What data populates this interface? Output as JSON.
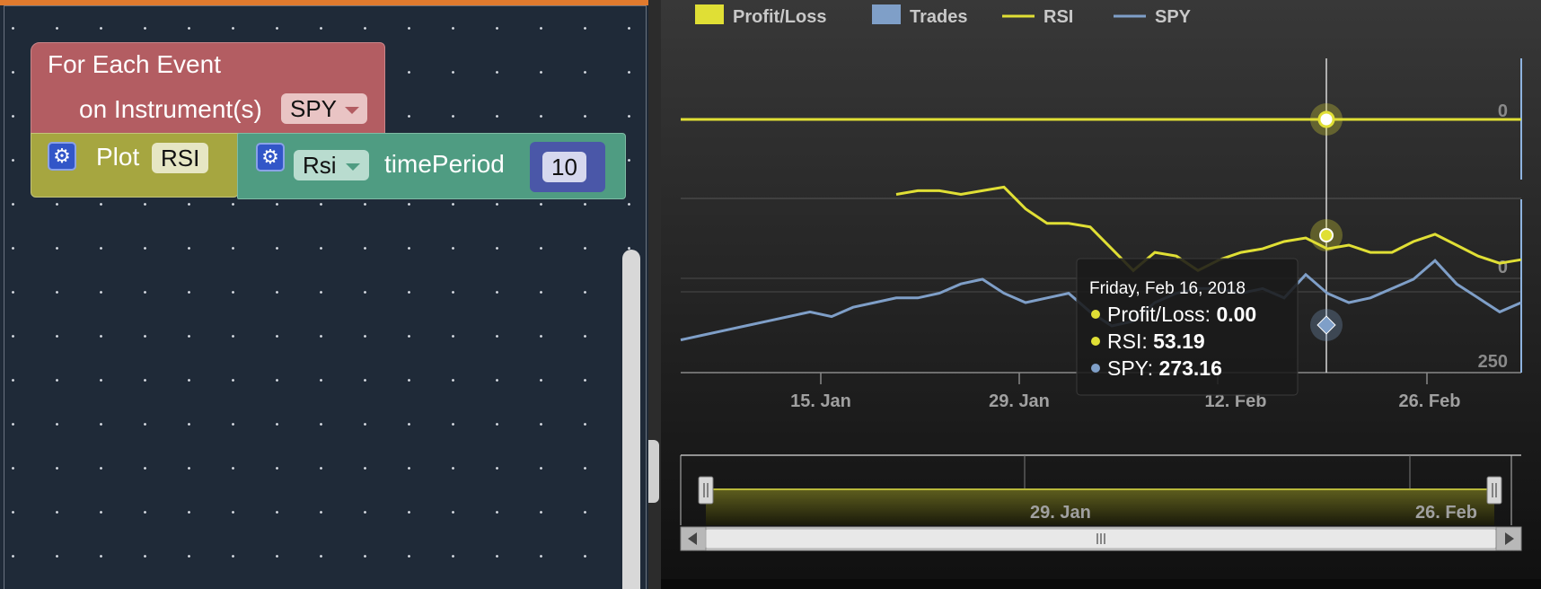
{
  "workspace": {
    "event_block": {
      "line1": "For Each Event",
      "line2": "on Instrument(s)",
      "instrument": "SPY"
    },
    "plot_block": {
      "label": "Plot",
      "name": "RSI"
    },
    "rsi_block": {
      "indicator": "Rsi",
      "param_label": "timePeriod",
      "param_value": "10"
    },
    "colors": {
      "event": "#b35d62",
      "plot": "#a6a640",
      "indicator": "#4f9c82",
      "workspace": "#1f2a38"
    }
  },
  "chart": {
    "legend": [
      {
        "name": "Profit/Loss",
        "type": "box",
        "color": "#e0df35"
      },
      {
        "name": "Trades",
        "type": "box",
        "color": "#7f9fc8"
      },
      {
        "name": "RSI",
        "type": "line",
        "color": "#e0df35"
      },
      {
        "name": "SPY",
        "type": "line",
        "color": "#7f9fc8"
      }
    ],
    "panel_labels": {
      "pl": "0",
      "rsi": "0",
      "spy": "250"
    },
    "x_ticks": [
      "15. Jan",
      "29. Jan",
      "12. Feb",
      "26. Feb"
    ],
    "navigator_labels": [
      "29. Jan",
      "26. Feb"
    ],
    "tooltip": {
      "date": "Friday, Feb 16, 2018",
      "rows": [
        {
          "label": "Profit/Loss: ",
          "value": "0.00",
          "color": "#e0df35"
        },
        {
          "label": "RSI: ",
          "value": "53.19",
          "color": "#e0df35"
        },
        {
          "label": "SPY: ",
          "value": "273.16",
          "color": "#7f9fc8"
        }
      ]
    }
  },
  "chart_data": {
    "type": "line",
    "x_ticks": [
      "15. Jan",
      "29. Jan",
      "12. Feb",
      "26. Feb"
    ],
    "series": [
      {
        "name": "Profit/Loss",
        "values": [
          0,
          0
        ]
      },
      {
        "name": "RSI",
        "values": [
          68,
          69,
          69,
          68,
          69,
          70,
          64,
          60,
          60,
          59,
          53,
          47,
          52,
          51,
          47,
          50,
          52,
          53,
          55,
          56,
          53,
          54,
          52,
          52,
          55,
          57,
          54,
          51,
          49,
          50
        ]
      },
      {
        "name": "SPY",
        "values": [
          262,
          263,
          264,
          265,
          266,
          267,
          268,
          267,
          269,
          270,
          271,
          271,
          272,
          274,
          275,
          272,
          270,
          271,
          272,
          268,
          265,
          266,
          270,
          272,
          273,
          273,
          272,
          273,
          271,
          276,
          272,
          270,
          271,
          273,
          275,
          279,
          274,
          271,
          268,
          270
        ]
      }
    ],
    "highlight": {
      "date": "Friday, Feb 16, 2018",
      "Profit/Loss": 0.0,
      "RSI": 53.19,
      "SPY": 273.16
    },
    "legend_position": "top-left"
  }
}
